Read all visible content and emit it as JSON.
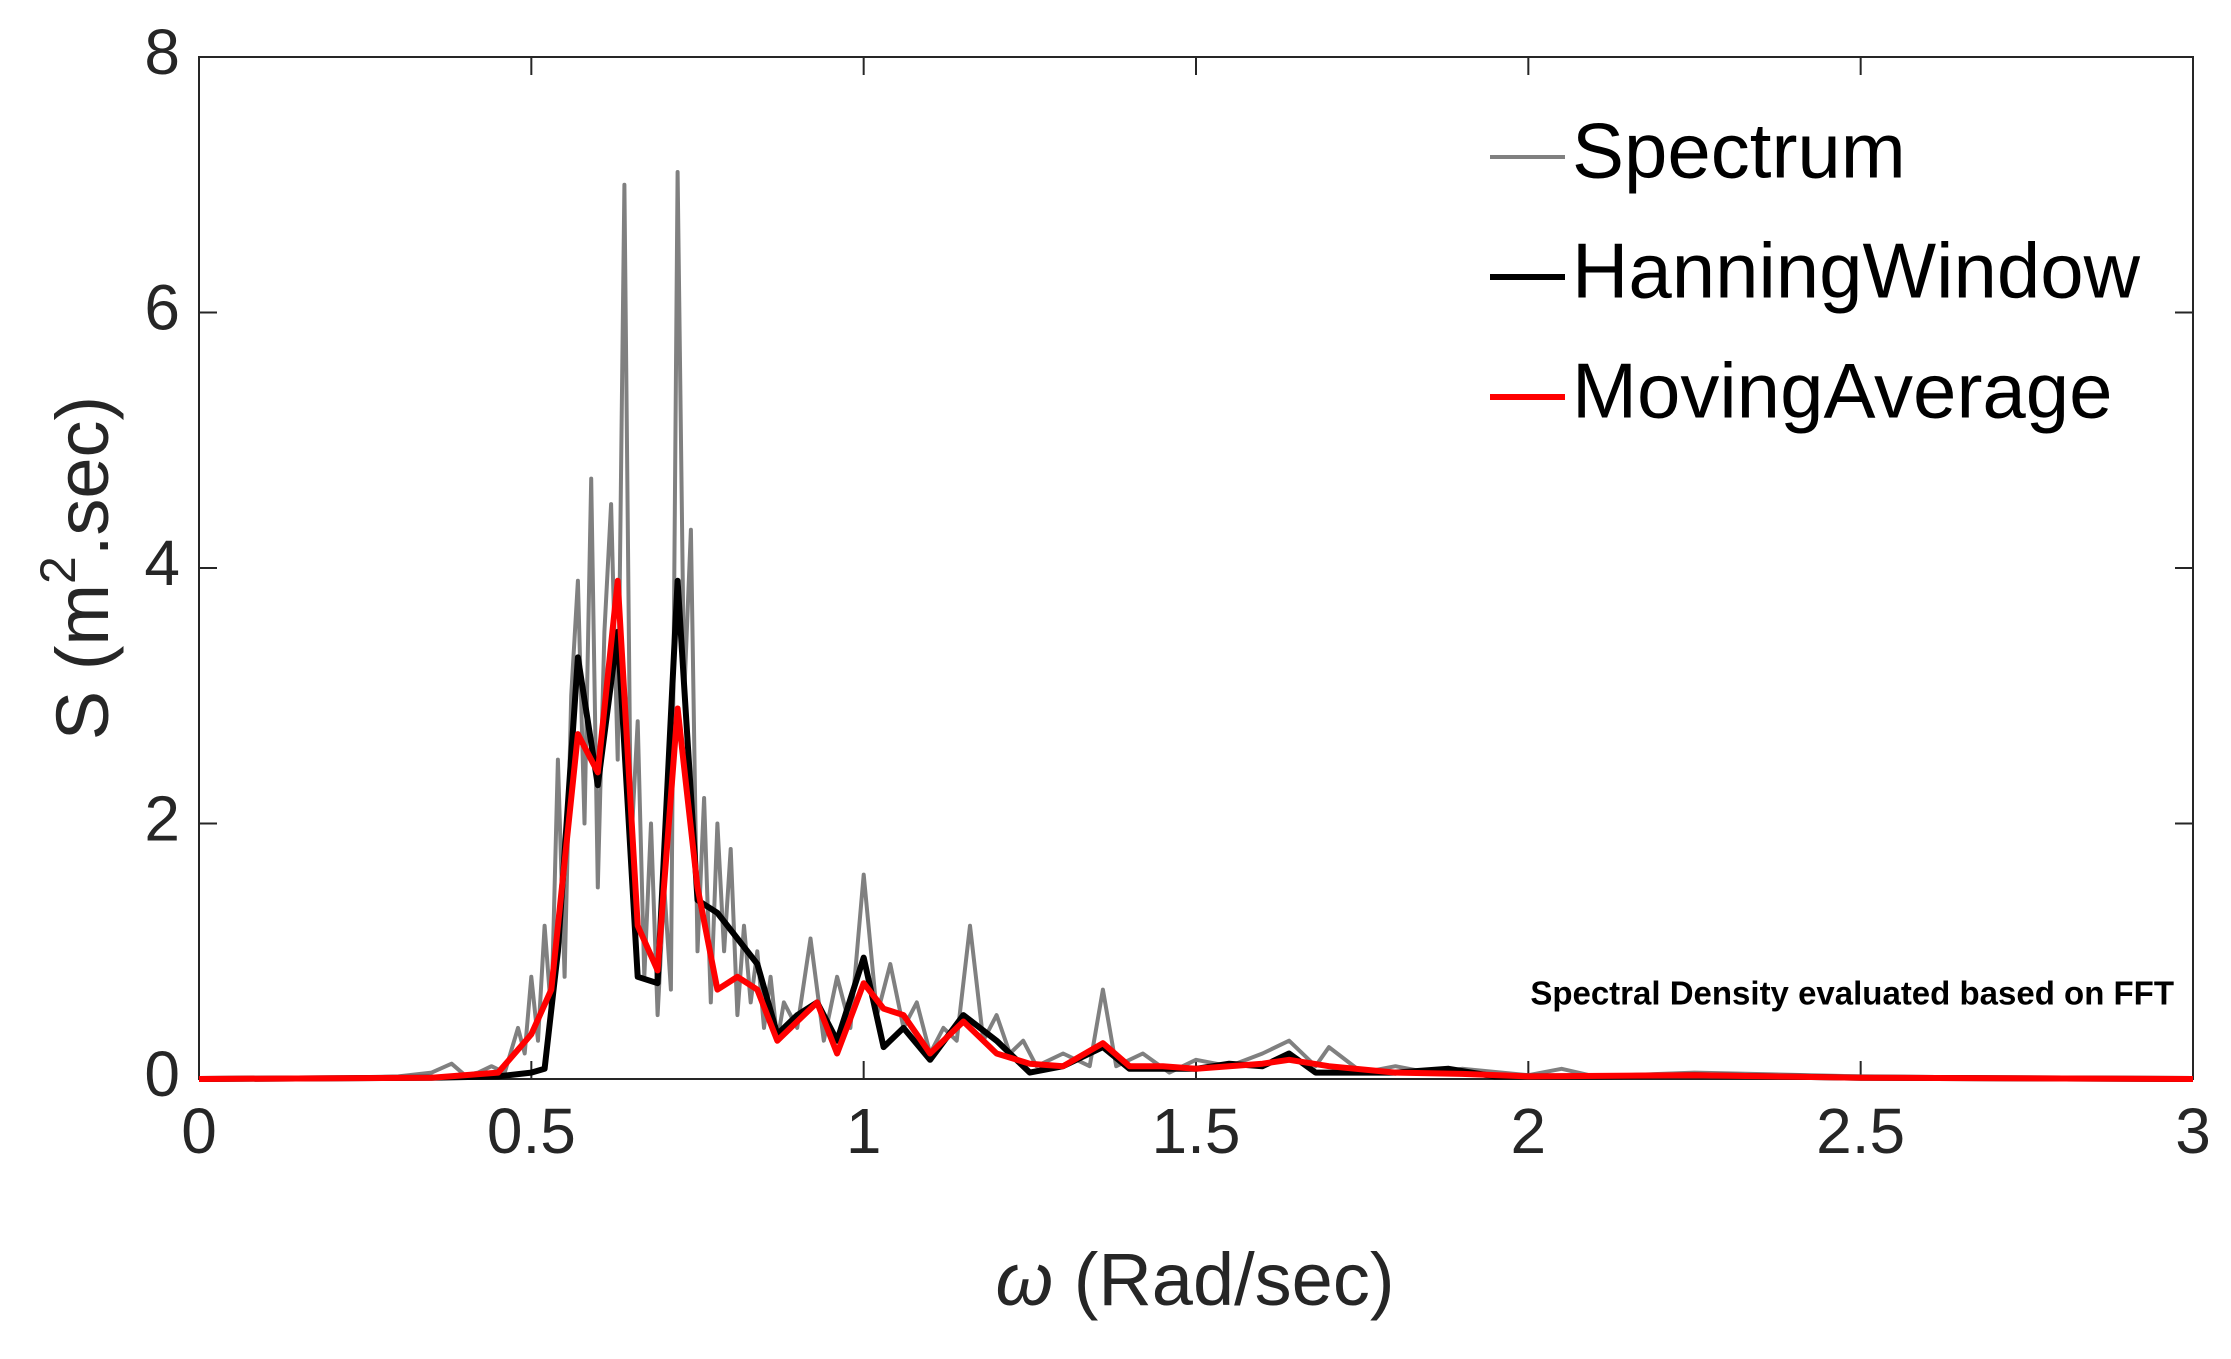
{
  "chart_data": {
    "type": "line",
    "xlabel": [
      "ω",
      " (Rad/sec)"
    ],
    "ylabel": [
      "S (m",
      "2",
      ".sec)"
    ],
    "annotation": "Spectral Density evaluated based on FFT",
    "xlim": [
      0,
      3
    ],
    "xticks": [
      0,
      0.5,
      1,
      1.5,
      2,
      2.5,
      3
    ],
    "ylim": [
      0,
      8
    ],
    "yticks": [
      0,
      2,
      4,
      6,
      8
    ],
    "legend": "upper right",
    "series": [
      {
        "name": "Spectrum",
        "color": "#808080",
        "x": [
          0,
          0.1,
          0.2,
          0.3,
          0.35,
          0.38,
          0.4,
          0.42,
          0.44,
          0.46,
          0.48,
          0.49,
          0.5,
          0.51,
          0.52,
          0.53,
          0.54,
          0.55,
          0.56,
          0.57,
          0.58,
          0.59,
          0.6,
          0.61,
          0.62,
          0.63,
          0.64,
          0.65,
          0.66,
          0.67,
          0.68,
          0.69,
          0.7,
          0.71,
          0.72,
          0.73,
          0.74,
          0.75,
          0.76,
          0.77,
          0.78,
          0.79,
          0.8,
          0.81,
          0.82,
          0.83,
          0.84,
          0.85,
          0.86,
          0.87,
          0.88,
          0.9,
          0.92,
          0.94,
          0.96,
          0.98,
          1.0,
          1.02,
          1.04,
          1.06,
          1.08,
          1.1,
          1.12,
          1.14,
          1.16,
          1.18,
          1.2,
          1.22,
          1.24,
          1.26,
          1.3,
          1.34,
          1.36,
          1.38,
          1.42,
          1.46,
          1.5,
          1.55,
          1.6,
          1.64,
          1.68,
          1.7,
          1.75,
          1.8,
          1.85,
          1.9,
          2.0,
          2.05,
          2.1,
          2.25,
          2.5,
          2.75,
          3.0
        ],
        "values": [
          0,
          0,
          0.01,
          0.02,
          0.05,
          0.12,
          0.03,
          0.05,
          0.1,
          0.05,
          0.4,
          0.2,
          0.8,
          0.3,
          1.2,
          0.5,
          2.5,
          0.8,
          3.0,
          3.9,
          2.0,
          4.7,
          1.5,
          3.5,
          4.5,
          2.5,
          7.0,
          1.8,
          2.8,
          0.8,
          2.0,
          0.5,
          1.5,
          0.7,
          7.1,
          3.0,
          4.3,
          1.0,
          2.2,
          0.6,
          2.0,
          1.0,
          1.8,
          0.5,
          1.2,
          0.6,
          1.0,
          0.4,
          0.8,
          0.3,
          0.6,
          0.4,
          1.1,
          0.3,
          0.8,
          0.4,
          1.6,
          0.5,
          0.9,
          0.4,
          0.6,
          0.2,
          0.4,
          0.3,
          1.2,
          0.3,
          0.5,
          0.2,
          0.3,
          0.1,
          0.2,
          0.1,
          0.7,
          0.1,
          0.2,
          0.05,
          0.15,
          0.1,
          0.2,
          0.3,
          0.1,
          0.25,
          0.05,
          0.1,
          0.05,
          0.08,
          0.03,
          0.08,
          0.02,
          0.05,
          0.02,
          0.01,
          0
        ]
      },
      {
        "name": "HanningWindow",
        "color": "#000000",
        "x": [
          0,
          0.35,
          0.45,
          0.5,
          0.52,
          0.54,
          0.57,
          0.6,
          0.63,
          0.66,
          0.69,
          0.72,
          0.75,
          0.78,
          0.81,
          0.84,
          0.87,
          0.9,
          0.93,
          0.96,
          1.0,
          1.03,
          1.06,
          1.1,
          1.15,
          1.2,
          1.25,
          1.3,
          1.36,
          1.4,
          1.5,
          1.55,
          1.6,
          1.64,
          1.68,
          1.8,
          1.88,
          1.95,
          2.1,
          2.25,
          2.5,
          3.0
        ],
        "values": [
          0,
          0.01,
          0.02,
          0.05,
          0.08,
          1.0,
          3.3,
          2.3,
          3.5,
          0.8,
          0.75,
          3.9,
          1.4,
          1.3,
          1.1,
          0.9,
          0.35,
          0.5,
          0.6,
          0.3,
          0.95,
          0.25,
          0.4,
          0.15,
          0.5,
          0.3,
          0.05,
          0.1,
          0.25,
          0.08,
          0.08,
          0.12,
          0.1,
          0.2,
          0.05,
          0.05,
          0.08,
          0.02,
          0.02,
          0.03,
          0.01,
          0
        ]
      },
      {
        "name": "MovingAverage",
        "color": "#ff0000",
        "x": [
          0,
          0.35,
          0.45,
          0.5,
          0.53,
          0.57,
          0.6,
          0.63,
          0.66,
          0.69,
          0.72,
          0.75,
          0.78,
          0.81,
          0.84,
          0.87,
          0.9,
          0.93,
          0.96,
          1.0,
          1.03,
          1.06,
          1.1,
          1.15,
          1.2,
          1.25,
          1.3,
          1.36,
          1.4,
          1.45,
          1.5,
          1.55,
          1.6,
          1.64,
          1.7,
          1.8,
          1.9,
          2.0,
          2.25,
          2.5,
          3.0
        ],
        "values": [
          0,
          0.01,
          0.05,
          0.35,
          0.7,
          2.7,
          2.4,
          3.9,
          1.2,
          0.85,
          2.9,
          1.5,
          0.7,
          0.8,
          0.7,
          0.3,
          0.45,
          0.6,
          0.2,
          0.75,
          0.55,
          0.5,
          0.2,
          0.45,
          0.2,
          0.12,
          0.1,
          0.28,
          0.1,
          0.1,
          0.08,
          0.1,
          0.12,
          0.15,
          0.1,
          0.05,
          0.04,
          0.02,
          0.03,
          0.01,
          0
        ]
      }
    ]
  }
}
